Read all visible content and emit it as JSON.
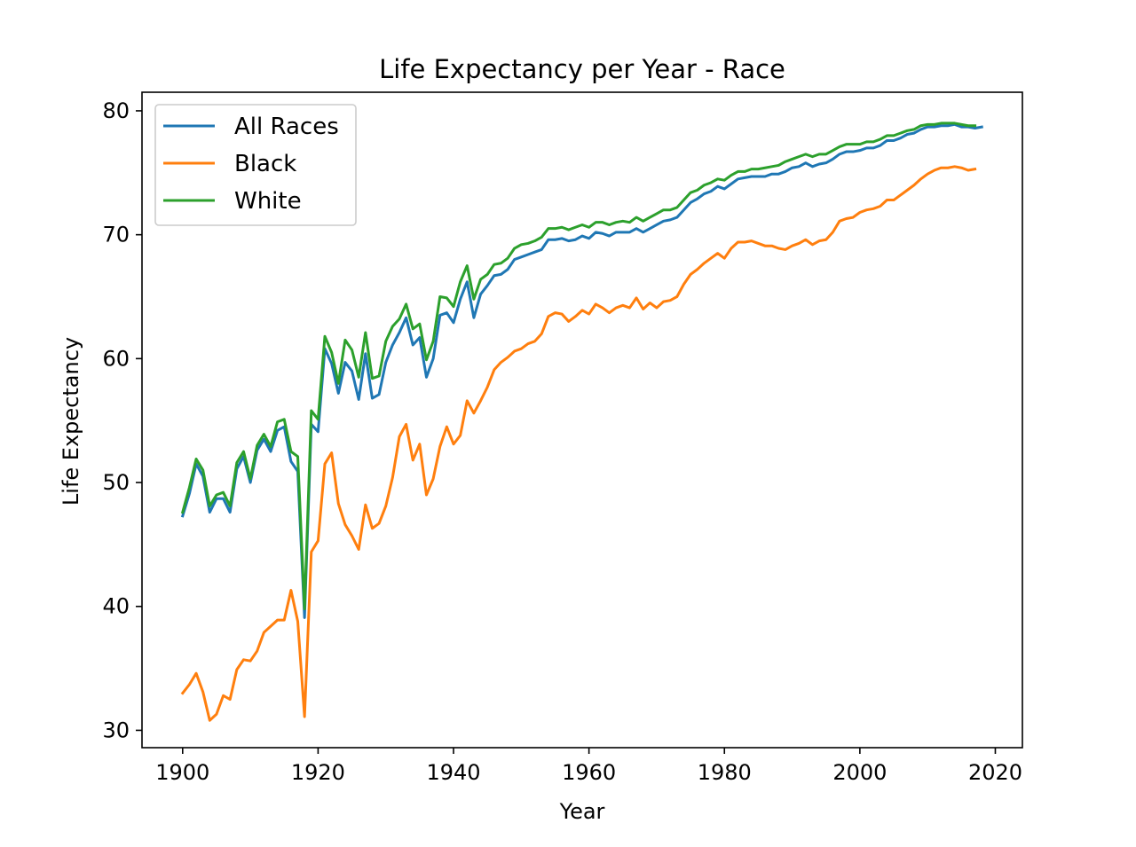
{
  "chart_data": {
    "type": "line",
    "title": "Life Expectancy per Year - Race",
    "xlabel": "Year",
    "ylabel": "Life Expectancy",
    "xlim": [
      1894,
      2024
    ],
    "ylim": [
      28.6,
      81.5
    ],
    "xticks": [
      1900,
      1920,
      1940,
      1960,
      1980,
      2000,
      2020
    ],
    "yticks": [
      30,
      40,
      50,
      60,
      70,
      80
    ],
    "grid": false,
    "legend_position": "top-left",
    "series": [
      {
        "name": "All Races",
        "color": "#1f77b4",
        "x": [
          1900,
          1901,
          1902,
          1903,
          1904,
          1905,
          1906,
          1907,
          1908,
          1909,
          1910,
          1911,
          1912,
          1913,
          1914,
          1915,
          1916,
          1917,
          1918,
          1919,
          1920,
          1921,
          1922,
          1923,
          1924,
          1925,
          1926,
          1927,
          1928,
          1929,
          1930,
          1931,
          1932,
          1933,
          1934,
          1935,
          1936,
          1937,
          1938,
          1939,
          1940,
          1941,
          1942,
          1943,
          1944,
          1945,
          1946,
          1947,
          1948,
          1949,
          1950,
          1951,
          1952,
          1953,
          1954,
          1955,
          1956,
          1957,
          1958,
          1959,
          1960,
          1961,
          1962,
          1963,
          1964,
          1965,
          1966,
          1967,
          1968,
          1969,
          1970,
          1971,
          1972,
          1973,
          1974,
          1975,
          1976,
          1977,
          1978,
          1979,
          1980,
          1981,
          1982,
          1983,
          1984,
          1985,
          1986,
          1987,
          1988,
          1989,
          1990,
          1991,
          1992,
          1993,
          1994,
          1995,
          1996,
          1997,
          1998,
          1999,
          2000,
          2001,
          2002,
          2003,
          2004,
          2005,
          2006,
          2007,
          2008,
          2009,
          2010,
          2011,
          2012,
          2013,
          2014,
          2015,
          2016,
          2017,
          2018
        ],
        "y": [
          47.3,
          49.1,
          51.5,
          50.5,
          47.6,
          48.7,
          48.7,
          47.6,
          51.1,
          52.1,
          50.0,
          52.6,
          53.5,
          52.5,
          54.2,
          54.5,
          51.7,
          50.9,
          39.1,
          54.7,
          54.1,
          60.8,
          59.6,
          57.2,
          59.7,
          59.0,
          56.7,
          60.4,
          56.8,
          57.1,
          59.7,
          61.1,
          62.1,
          63.3,
          61.1,
          61.7,
          58.5,
          60.0,
          63.5,
          63.7,
          62.9,
          64.8,
          66.2,
          63.3,
          65.2,
          65.9,
          66.7,
          66.8,
          67.2,
          68.0,
          68.2,
          68.4,
          68.6,
          68.8,
          69.6,
          69.6,
          69.7,
          69.5,
          69.6,
          69.9,
          69.7,
          70.2,
          70.1,
          69.9,
          70.2,
          70.2,
          70.2,
          70.5,
          70.2,
          70.5,
          70.8,
          71.1,
          71.2,
          71.4,
          72.0,
          72.6,
          72.9,
          73.3,
          73.5,
          73.9,
          73.7,
          74.1,
          74.5,
          74.6,
          74.7,
          74.7,
          74.7,
          74.9,
          74.9,
          75.1,
          75.4,
          75.5,
          75.8,
          75.5,
          75.7,
          75.8,
          76.1,
          76.5,
          76.7,
          76.7,
          76.8,
          77.0,
          77.0,
          77.2,
          77.6,
          77.6,
          77.8,
          78.1,
          78.2,
          78.5,
          78.7,
          78.7,
          78.8,
          78.8,
          78.9,
          78.7,
          78.7,
          78.6,
          78.7
        ]
      },
      {
        "name": "Black",
        "color": "#ff7f0e",
        "x": [
          1900,
          1901,
          1902,
          1903,
          1904,
          1905,
          1906,
          1907,
          1908,
          1909,
          1910,
          1911,
          1912,
          1913,
          1914,
          1915,
          1916,
          1917,
          1918,
          1919,
          1920,
          1921,
          1922,
          1923,
          1924,
          1925,
          1926,
          1927,
          1928,
          1929,
          1930,
          1931,
          1932,
          1933,
          1934,
          1935,
          1936,
          1937,
          1938,
          1939,
          1940,
          1941,
          1942,
          1943,
          1944,
          1945,
          1946,
          1947,
          1948,
          1949,
          1950,
          1951,
          1952,
          1953,
          1954,
          1955,
          1956,
          1957,
          1958,
          1959,
          1960,
          1961,
          1962,
          1963,
          1964,
          1965,
          1966,
          1967,
          1968,
          1969,
          1970,
          1971,
          1972,
          1973,
          1974,
          1975,
          1976,
          1977,
          1978,
          1979,
          1980,
          1981,
          1982,
          1983,
          1984,
          1985,
          1986,
          1987,
          1988,
          1989,
          1990,
          1991,
          1992,
          1993,
          1994,
          1995,
          1996,
          1997,
          1998,
          1999,
          2000,
          2001,
          2002,
          2003,
          2004,
          2005,
          2006,
          2007,
          2008,
          2009,
          2010,
          2011,
          2012,
          2013,
          2014,
          2015,
          2016,
          2017
        ],
        "y": [
          33.0,
          33.7,
          34.6,
          33.1,
          30.8,
          31.3,
          32.8,
          32.5,
          34.9,
          35.7,
          35.6,
          36.4,
          37.9,
          38.4,
          38.9,
          38.9,
          41.3,
          38.8,
          31.1,
          44.4,
          45.3,
          51.5,
          52.4,
          48.3,
          46.6,
          45.7,
          44.6,
          48.2,
          46.3,
          46.7,
          48.1,
          50.4,
          53.7,
          54.7,
          51.8,
          53.1,
          49.0,
          50.3,
          52.9,
          54.5,
          53.1,
          53.8,
          56.6,
          55.6,
          56.6,
          57.7,
          59.1,
          59.7,
          60.1,
          60.6,
          60.8,
          61.2,
          61.4,
          62.0,
          63.4,
          63.7,
          63.6,
          63.0,
          63.4,
          63.9,
          63.6,
          64.4,
          64.1,
          63.7,
          64.1,
          64.3,
          64.1,
          64.9,
          64.0,
          64.5,
          64.1,
          64.6,
          64.7,
          65.0,
          66.0,
          66.8,
          67.2,
          67.7,
          68.1,
          68.5,
          68.1,
          68.9,
          69.4,
          69.4,
          69.5,
          69.3,
          69.1,
          69.1,
          68.9,
          68.8,
          69.1,
          69.3,
          69.6,
          69.2,
          69.5,
          69.6,
          70.2,
          71.1,
          71.3,
          71.4,
          71.8,
          72.0,
          72.1,
          72.3,
          72.8,
          72.8,
          73.2,
          73.6,
          74.0,
          74.5,
          74.9,
          75.2,
          75.4,
          75.4,
          75.5,
          75.4,
          75.2,
          75.3
        ]
      },
      {
        "name": "White",
        "color": "#2ca02c",
        "x": [
          1900,
          1901,
          1902,
          1903,
          1904,
          1905,
          1906,
          1907,
          1908,
          1909,
          1910,
          1911,
          1912,
          1913,
          1914,
          1915,
          1916,
          1917,
          1918,
          1919,
          1920,
          1921,
          1922,
          1923,
          1924,
          1925,
          1926,
          1927,
          1928,
          1929,
          1930,
          1931,
          1932,
          1933,
          1934,
          1935,
          1936,
          1937,
          1938,
          1939,
          1940,
          1941,
          1942,
          1943,
          1944,
          1945,
          1946,
          1947,
          1948,
          1949,
          1950,
          1951,
          1952,
          1953,
          1954,
          1955,
          1956,
          1957,
          1958,
          1959,
          1960,
          1961,
          1962,
          1963,
          1964,
          1965,
          1966,
          1967,
          1968,
          1969,
          1970,
          1971,
          1972,
          1973,
          1974,
          1975,
          1976,
          1977,
          1978,
          1979,
          1980,
          1981,
          1982,
          1983,
          1984,
          1985,
          1986,
          1987,
          1988,
          1989,
          1990,
          1991,
          1992,
          1993,
          1994,
          1995,
          1996,
          1997,
          1998,
          1999,
          2000,
          2001,
          2002,
          2003,
          2004,
          2005,
          2006,
          2007,
          2008,
          2009,
          2010,
          2011,
          2012,
          2013,
          2014,
          2015,
          2016,
          2017
        ],
        "y": [
          47.6,
          49.6,
          51.9,
          51.0,
          48.1,
          49.0,
          49.2,
          48.1,
          51.6,
          52.5,
          50.3,
          53.0,
          53.9,
          52.9,
          54.9,
          55.1,
          52.5,
          52.1,
          39.8,
          55.8,
          55.1,
          61.8,
          60.5,
          58.0,
          61.5,
          60.7,
          58.5,
          62.1,
          58.4,
          58.6,
          61.4,
          62.6,
          63.2,
          64.4,
          62.4,
          62.8,
          59.9,
          61.4,
          65.0,
          64.9,
          64.2,
          66.2,
          67.5,
          64.8,
          66.4,
          66.8,
          67.6,
          67.7,
          68.1,
          68.9,
          69.2,
          69.3,
          69.5,
          69.8,
          70.5,
          70.5,
          70.6,
          70.4,
          70.6,
          70.8,
          70.6,
          71.0,
          71.0,
          70.8,
          71.0,
          71.1,
          71.0,
          71.4,
          71.1,
          71.4,
          71.7,
          72.0,
          72.0,
          72.2,
          72.8,
          73.4,
          73.6,
          74.0,
          74.2,
          74.5,
          74.4,
          74.8,
          75.1,
          75.1,
          75.3,
          75.3,
          75.4,
          75.5,
          75.6,
          75.9,
          76.1,
          76.3,
          76.5,
          76.3,
          76.5,
          76.5,
          76.8,
          77.1,
          77.3,
          77.3,
          77.3,
          77.5,
          77.5,
          77.7,
          78.0,
          78.0,
          78.2,
          78.4,
          78.5,
          78.8,
          78.9,
          78.9,
          79.0,
          79.0,
          79.0,
          78.9,
          78.8,
          78.8
        ]
      }
    ]
  }
}
